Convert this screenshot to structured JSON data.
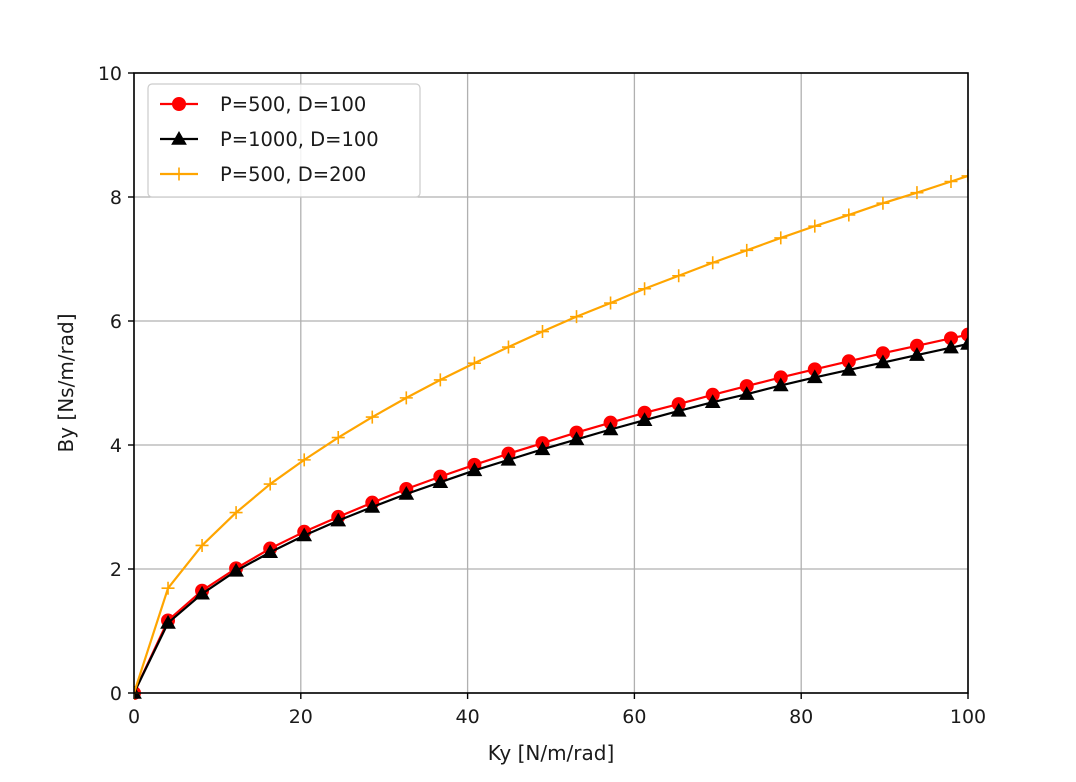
{
  "chart_data": {
    "type": "line",
    "xlabel": "Ky [N/m/rad]",
    "ylabel": "By [Ns/m/rad]",
    "xlim": [
      0,
      100
    ],
    "ylim": [
      0,
      10
    ],
    "xticks": [
      "0",
      "20",
      "40",
      "60",
      "80",
      "100"
    ],
    "yticks": [
      "0",
      "2",
      "4",
      "6",
      "8",
      "10"
    ],
    "grid": true,
    "legend_position": "top-left",
    "x": [
      0,
      4.08,
      8.16,
      12.24,
      16.33,
      20.41,
      24.49,
      28.57,
      32.65,
      36.73,
      40.82,
      44.9,
      48.98,
      53.06,
      57.14,
      61.22,
      65.31,
      69.39,
      73.47,
      77.55,
      81.63,
      85.71,
      89.8,
      93.88,
      97.96,
      100
    ],
    "series": [
      {
        "name": "P=500, D=100",
        "color": "#ff0000",
        "marker": "circle",
        "values": [
          0,
          1.17,
          1.65,
          2.01,
          2.33,
          2.6,
          2.84,
          3.07,
          3.29,
          3.49,
          3.68,
          3.86,
          4.03,
          4.2,
          4.36,
          4.52,
          4.66,
          4.81,
          4.95,
          5.09,
          5.22,
          5.35,
          5.48,
          5.6,
          5.72,
          5.78
        ]
      },
      {
        "name": "P=1000, D=100",
        "color": "#000000",
        "marker": "triangle",
        "values": [
          0,
          1.13,
          1.6,
          1.97,
          2.27,
          2.54,
          2.78,
          3.0,
          3.21,
          3.4,
          3.59,
          3.76,
          3.93,
          4.09,
          4.25,
          4.4,
          4.55,
          4.69,
          4.82,
          4.96,
          5.09,
          5.21,
          5.33,
          5.45,
          5.57,
          5.63
        ]
      },
      {
        "name": "P=500, D=200",
        "color": "#ffa500",
        "marker": "plus",
        "values": [
          0,
          1.69,
          2.38,
          2.91,
          3.37,
          3.76,
          4.12,
          4.45,
          4.76,
          5.05,
          5.32,
          5.58,
          5.83,
          6.07,
          6.29,
          6.52,
          6.73,
          6.94,
          7.14,
          7.34,
          7.53,
          7.71,
          7.9,
          8.07,
          8.25,
          8.34
        ]
      }
    ]
  }
}
